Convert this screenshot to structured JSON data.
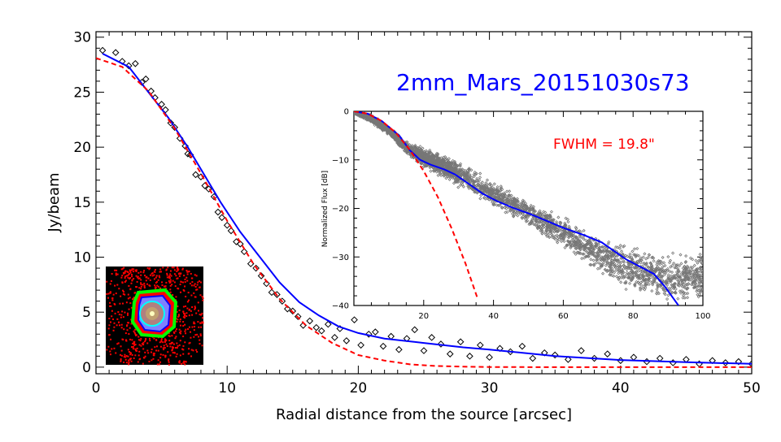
{
  "chart_data": [
    {
      "type": "scatter",
      "title": "2mm_Mars_20151030s73",
      "xlabel": "Radial distance from the source [arcsec]",
      "ylabel": "Jy/beam",
      "xlim": [
        0,
        50
      ],
      "ylim": [
        -0.6,
        30.5
      ],
      "x_ticks": [
        0,
        10,
        20,
        30,
        40,
        50
      ],
      "y_ticks": [
        0,
        5,
        10,
        15,
        20,
        25,
        30
      ],
      "grid": false,
      "series": [
        {
          "kind": "points",
          "marker": "diamond",
          "color": "#000000",
          "points": [
            [
              0.5,
              28.8
            ],
            [
              1.5,
              28.6
            ],
            [
              2,
              27.8
            ],
            [
              2.5,
              27.4
            ],
            [
              3,
              27.6
            ],
            [
              3.5,
              25.9
            ],
            [
              3.8,
              26.2
            ],
            [
              4.2,
              25.1
            ],
            [
              4.5,
              24.5
            ],
            [
              5,
              23.9
            ],
            [
              5.3,
              23.4
            ],
            [
              5.7,
              22.2
            ],
            [
              6,
              21.8
            ],
            [
              6.4,
              20.8
            ],
            [
              6.8,
              20.1
            ],
            [
              7,
              19.4
            ],
            [
              7.2,
              19.3
            ],
            [
              7.6,
              17.5
            ],
            [
              8,
              17.3
            ],
            [
              8.3,
              16.5
            ],
            [
              8.6,
              16.2
            ],
            [
              9,
              15.5
            ],
            [
              9.3,
              14.1
            ],
            [
              9.6,
              13.6
            ],
            [
              10,
              12.9
            ],
            [
              10.3,
              12.4
            ],
            [
              10.7,
              11.4
            ],
            [
              11,
              11.2
            ],
            [
              11.3,
              10.5
            ],
            [
              11.8,
              9.4
            ],
            [
              12.2,
              9.0
            ],
            [
              12.6,
              8.3
            ],
            [
              13,
              7.6
            ],
            [
              13.4,
              6.8
            ],
            [
              13.8,
              6.6
            ],
            [
              14.2,
              6.0
            ],
            [
              14.6,
              5.3
            ],
            [
              15,
              5.1
            ],
            [
              15.4,
              4.6
            ],
            [
              15.8,
              3.8
            ],
            [
              16.3,
              4.2
            ],
            [
              16.8,
              3.6
            ],
            [
              17.2,
              3.3
            ],
            [
              17.7,
              3.9
            ],
            [
              18.2,
              2.7
            ],
            [
              18.6,
              3.5
            ],
            [
              19.1,
              2.4
            ],
            [
              19.7,
              4.3
            ],
            [
              20.2,
              2.0
            ],
            [
              20.8,
              3.0
            ],
            [
              21.3,
              3.2
            ],
            [
              21.9,
              1.9
            ],
            [
              22.5,
              2.8
            ],
            [
              23.1,
              1.6
            ],
            [
              23.7,
              2.6
            ],
            [
              24.3,
              3.4
            ],
            [
              25,
              1.5
            ],
            [
              25.6,
              2.7
            ],
            [
              26.3,
              2.1
            ],
            [
              27,
              1.2
            ],
            [
              27.8,
              2.3
            ],
            [
              28.5,
              1.0
            ],
            [
              29.3,
              2.0
            ],
            [
              30,
              0.9
            ],
            [
              30.8,
              1.7
            ],
            [
              31.6,
              1.4
            ],
            [
              32.5,
              1.9
            ],
            [
              33.3,
              0.8
            ],
            [
              34.2,
              1.3
            ],
            [
              35,
              1.1
            ],
            [
              36,
              0.7
            ],
            [
              37,
              1.5
            ],
            [
              38,
              0.8
            ],
            [
              39,
              1.2
            ],
            [
              40,
              0.6
            ],
            [
              41,
              0.9
            ],
            [
              42,
              0.5
            ],
            [
              43,
              0.8
            ],
            [
              44,
              0.4
            ],
            [
              45,
              0.7
            ],
            [
              46,
              0.3
            ],
            [
              47,
              0.6
            ],
            [
              48,
              0.4
            ],
            [
              49,
              0.5
            ],
            [
              50,
              0.3
            ]
          ]
        },
        {
          "kind": "line",
          "style": "solid",
          "color": "#0000ff",
          "x": [
            0.5,
            2.5,
            4,
            5.5,
            7,
            8.5,
            9.5,
            11,
            12.5,
            14,
            15.5,
            17,
            18.5,
            20,
            22,
            25,
            28,
            30,
            35,
            40,
            45,
            50
          ],
          "y": [
            28.5,
            27.3,
            25.0,
            22.7,
            20.0,
            17.0,
            15.0,
            12.3,
            10.0,
            7.7,
            5.9,
            4.7,
            3.7,
            3.1,
            2.6,
            2.2,
            1.8,
            1.6,
            1.0,
            0.65,
            0.45,
            0.3
          ]
        },
        {
          "kind": "line",
          "style": "dashed",
          "color": "#ff0000",
          "x": [
            0,
            2,
            4,
            6,
            8,
            10,
            12,
            14,
            16,
            18,
            20,
            22,
            24,
            26,
            28,
            30,
            35,
            40,
            45,
            50
          ],
          "y": [
            28.1,
            27.3,
            25.1,
            21.7,
            17.6,
            13.3,
            9.4,
            6.2,
            3.8,
            2.2,
            1.1,
            0.6,
            0.25,
            0.1,
            0.04,
            0.01,
            0,
            0,
            0,
            0
          ]
        }
      ]
    },
    {
      "type": "scatter",
      "xlabel": "",
      "ylabel": "Normalized Flux [dB]",
      "annotation": "FWHM = 19.8\"",
      "annotation_color": "#ff0000",
      "xlim": [
        0,
        100
      ],
      "ylim": [
        -40,
        0
      ],
      "x_ticks": [
        20,
        40,
        60,
        80,
        100
      ],
      "y_ticks": [
        0,
        -10,
        -20,
        -30,
        -40
      ],
      "grid": false,
      "series": [
        {
          "kind": "points-band",
          "marker": "diamond",
          "color": "#777777",
          "x": [
            0,
            5,
            10,
            15,
            20,
            25,
            30,
            40,
            50,
            60,
            70,
            80,
            90,
            100
          ],
          "lower": [
            -0.5,
            -2.5,
            -5,
            -9,
            -12,
            -14,
            -16,
            -20,
            -24,
            -29,
            -34,
            -38,
            -40,
            -40
          ],
          "upper": [
            0,
            -0.5,
            -3,
            -6,
            -7,
            -8,
            -10,
            -14,
            -18,
            -21,
            -25,
            -27,
            -29,
            -28
          ]
        },
        {
          "kind": "line",
          "style": "solid",
          "color": "#0000ff",
          "x": [
            0,
            4,
            8,
            13,
            16,
            19,
            22,
            26,
            29,
            33,
            37,
            41,
            46,
            50,
            55,
            60,
            66,
            71,
            74,
            78,
            82,
            86,
            89,
            93
          ],
          "y": [
            0,
            -0.5,
            -2,
            -5,
            -8,
            -10,
            -11,
            -12,
            -13,
            -15,
            -17,
            -18.5,
            -20,
            -21,
            -22.5,
            -24,
            -25.5,
            -27,
            -28.5,
            -30.5,
            -32,
            -33.5,
            -36,
            -40
          ]
        },
        {
          "kind": "line",
          "style": "dashed",
          "color": "#ff0000",
          "x": [
            0,
            4,
            8,
            12,
            16,
            20,
            24,
            28,
            32,
            35.5
          ],
          "y": [
            0,
            -0.5,
            -2,
            -4.4,
            -7.9,
            -12.3,
            -17.6,
            -24.1,
            -31.4,
            -38.7
          ]
        }
      ]
    }
  ],
  "thumbnail": {
    "colors": {
      "background": "#000000",
      "noise": "#ff0000",
      "ring_outer": "#00ff00",
      "ring_mid": "#0000ff",
      "ring_inner": "#00ffff",
      "core": "#b08080"
    }
  }
}
